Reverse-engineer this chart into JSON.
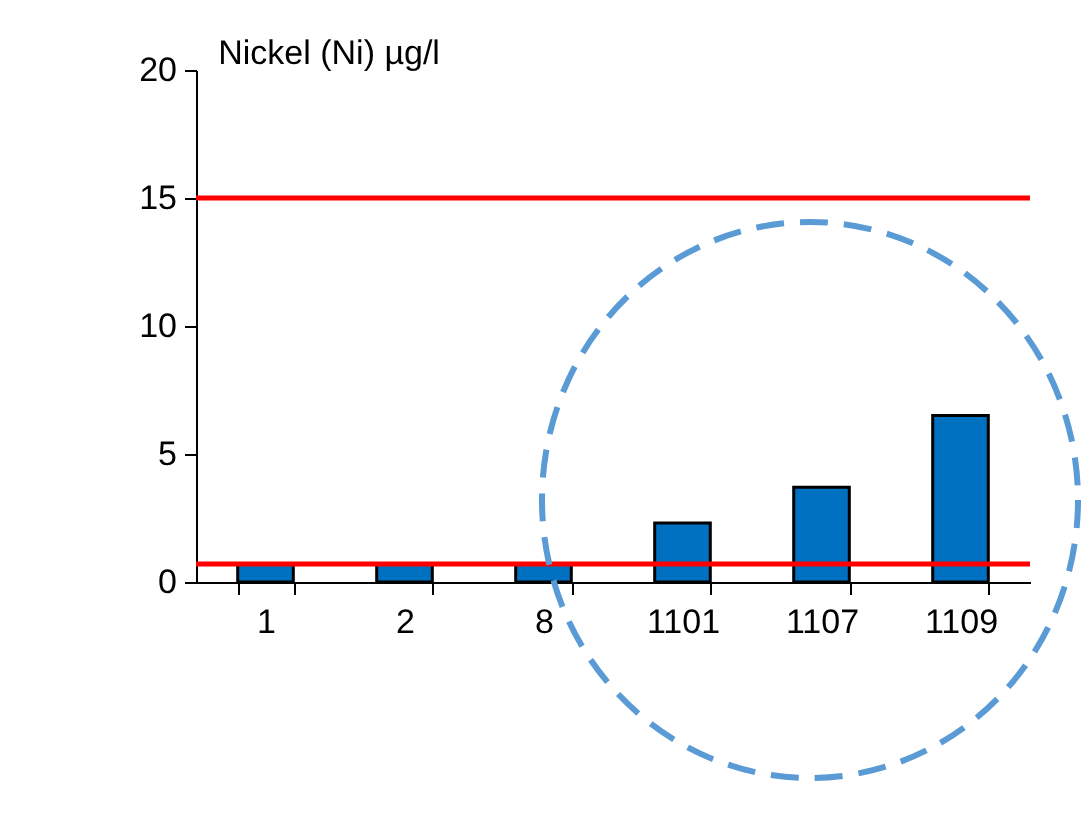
{
  "chart_data": {
    "type": "bar",
    "title": "Nickel (Ni) µg/l",
    "categories": [
      "1",
      "2",
      "8",
      "1101",
      "1107",
      "1109"
    ],
    "values": [
      0.7,
      0.7,
      0.7,
      2.3,
      3.7,
      6.5
    ],
    "color": "#0070c0",
    "ylim": [
      0,
      20
    ],
    "yticks": [
      0,
      5,
      10,
      15,
      20
    ],
    "ref_lines": [
      {
        "axis": "y",
        "value": 15,
        "color": "#ff0000"
      },
      {
        "axis": "y",
        "value": 0.7,
        "color": "#ff0000"
      }
    ]
  }
}
